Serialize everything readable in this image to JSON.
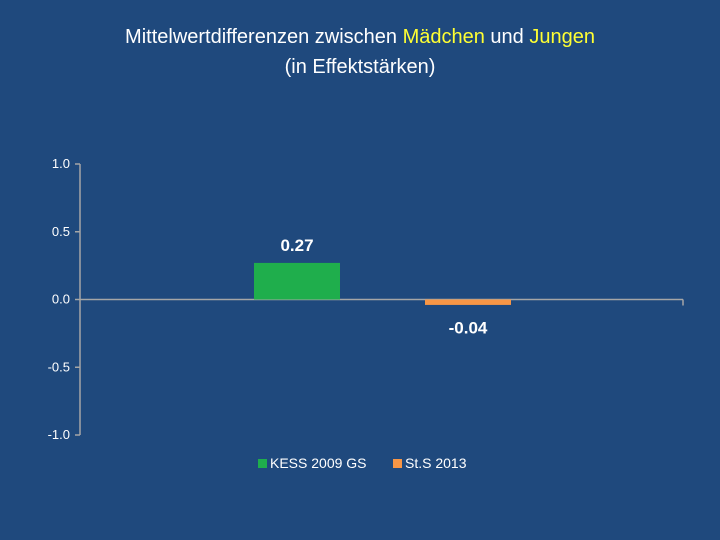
{
  "colors": {
    "background": "#1f497d",
    "axis": "#a6a6a6",
    "highlight": "#ffff33",
    "series_kess": "#1fae4c",
    "series_sts": "#f79646"
  },
  "title": {
    "part1": "Mittelwertdifferenzen zwischen ",
    "girls": "Mädchen",
    "part2": " und ",
    "boys": "Jungen",
    "line2": "(in Effektstärken)"
  },
  "chart_data": {
    "type": "bar",
    "title": "Mittelwertdifferenzen zwischen Mädchen und Jungen (in Effektstärken)",
    "xlabel": "",
    "ylabel": "",
    "ylim": [
      -1.0,
      1.0
    ],
    "yticks": [
      1.0,
      0.5,
      0.0,
      -0.5,
      -1.0
    ],
    "ytick_labels": [
      "1.0",
      "0.5",
      "0.0",
      "-0.5",
      "-1.0"
    ],
    "categories": [
      ""
    ],
    "series": [
      {
        "name": "KESS 2009 GS",
        "values": [
          0.27
        ],
        "label": "0.27",
        "color": "#1fae4c"
      },
      {
        "name": "St.S 2013",
        "values": [
          -0.04
        ],
        "label": "-0.04",
        "color": "#f79646"
      }
    ],
    "legend": "bottom"
  }
}
